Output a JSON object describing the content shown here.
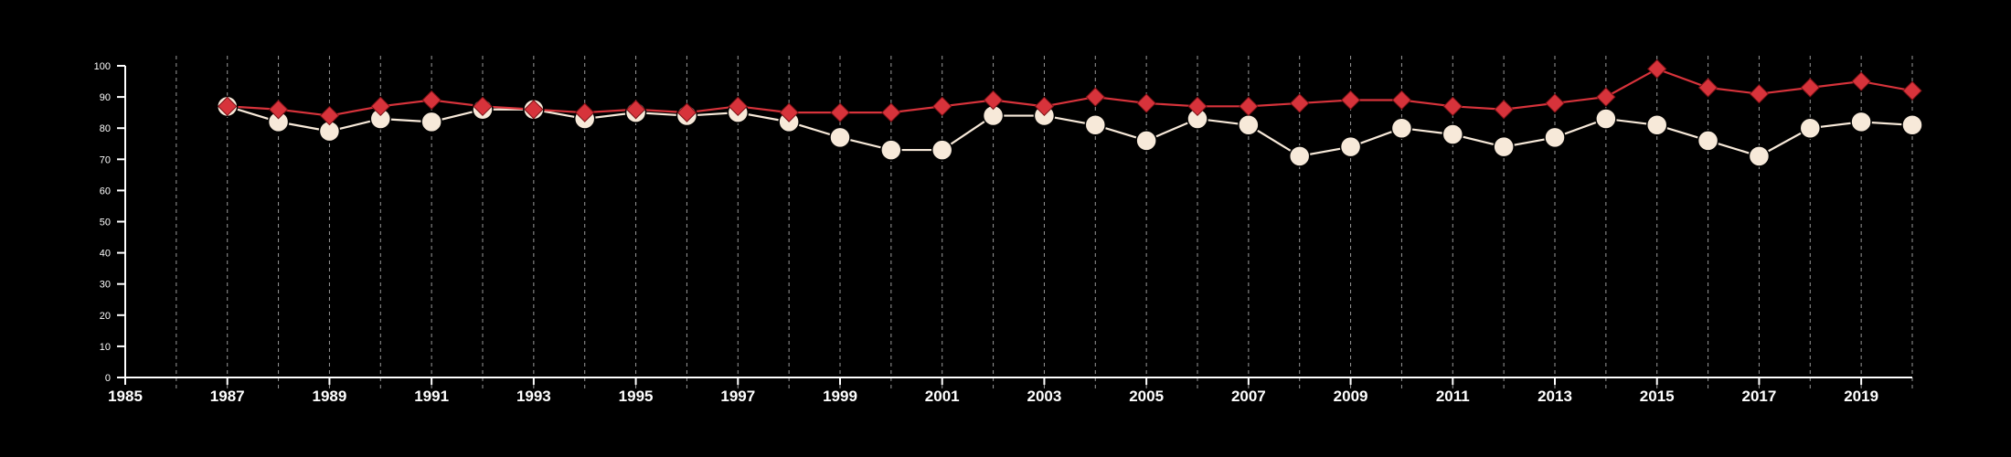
{
  "chart_data": {
    "type": "line",
    "title": "",
    "xlabel": "",
    "ylabel": "",
    "x": [
      1987,
      1988,
      1989,
      1990,
      1991,
      1992,
      1993,
      1994,
      1995,
      1996,
      1997,
      1998,
      1999,
      2000,
      2001,
      2002,
      2003,
      2004,
      2005,
      2006,
      2007,
      2008,
      2009,
      2010,
      2011,
      2012,
      2013,
      2014,
      2015,
      2016,
      2017,
      2018,
      2019,
      2020
    ],
    "xlim": [
      1985,
      2020
    ],
    "ylim": [
      0,
      100
    ],
    "x_ticks": [
      1985,
      1987,
      1989,
      1991,
      1993,
      1995,
      1997,
      1999,
      2001,
      2003,
      2005,
      2007,
      2009,
      2011,
      2013,
      2015,
      2017,
      2019
    ],
    "y_ticks": [
      0,
      10,
      20,
      30,
      40,
      50,
      60,
      70,
      80,
      90,
      100
    ],
    "vertical_grid": "dashed at every year",
    "legend": "none",
    "series": [
      {
        "marker": "diamond",
        "color": "#d7333b",
        "values": [
          87,
          86,
          84,
          87,
          89,
          87,
          86,
          85,
          86,
          85,
          87,
          85,
          85,
          85,
          87,
          89,
          87,
          90,
          88,
          87,
          87,
          88,
          89,
          89,
          87,
          86,
          88,
          90,
          99,
          93,
          91,
          93,
          95,
          92
        ]
      },
      {
        "marker": "circle",
        "color": "#f7e9d9",
        "values": [
          87,
          82,
          79,
          83,
          82,
          86,
          86,
          83,
          85,
          84,
          85,
          82,
          77,
          73,
          73,
          84,
          84,
          81,
          76,
          83,
          81,
          71,
          74,
          80,
          78,
          74,
          77,
          83,
          81,
          76,
          71,
          80,
          82,
          81
        ]
      }
    ]
  }
}
